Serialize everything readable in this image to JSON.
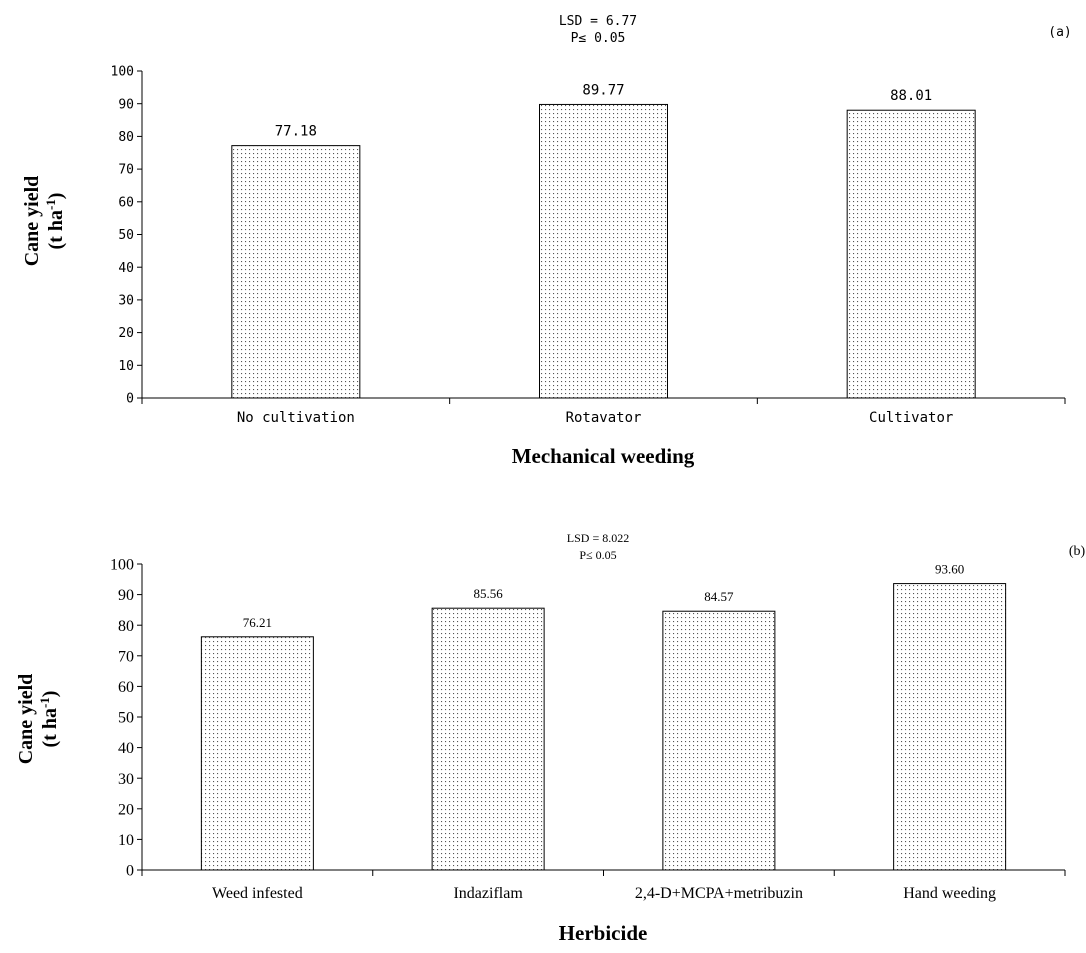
{
  "chart_data": [
    {
      "type": "bar",
      "panel_label": "(a)",
      "annotation": [
        "LSD = 6.77",
        "P≤ 0.05"
      ],
      "categories": [
        "No cultivation",
        "Rotavator",
        "Cultivator"
      ],
      "values": [
        77.18,
        89.77,
        88.01
      ],
      "value_labels": [
        "77.18",
        "89.77",
        "88.01"
      ],
      "xlabel": "Mechanical weeding",
      "ylabel_main": "Cane yield",
      "ylabel_unit_pre": "(t ha",
      "ylabel_unit_sup": "-1",
      "ylabel_unit_post": ")",
      "ylim": [
        0,
        100
      ],
      "yticks": [
        0,
        10,
        20,
        30,
        40,
        50,
        60,
        70,
        80,
        90,
        100
      ],
      "grid": false,
      "fill": "dotted",
      "bar_stroke": "#000000"
    },
    {
      "type": "bar",
      "panel_label": "(b)",
      "annotation": [
        "LSD = 8.022",
        "P≤ 0.05"
      ],
      "categories": [
        "Weed infested",
        "Indaziflam",
        "2,4-D+MCPA+metribuzin",
        "Hand weeding"
      ],
      "values": [
        76.21,
        85.56,
        84.57,
        93.6
      ],
      "value_labels": [
        "76.21",
        "85.56",
        "84.57",
        "93.60"
      ],
      "xlabel": "Herbicide",
      "ylabel_main": "Cane yield",
      "ylabel_unit_pre": "(t ha",
      "ylabel_unit_sup": "-1",
      "ylabel_unit_post": ")",
      "ylim": [
        0,
        100
      ],
      "yticks": [
        0,
        10,
        20,
        30,
        40,
        50,
        60,
        70,
        80,
        90,
        100
      ],
      "grid": false,
      "fill": "dotted",
      "bar_stroke": "#000000"
    }
  ]
}
